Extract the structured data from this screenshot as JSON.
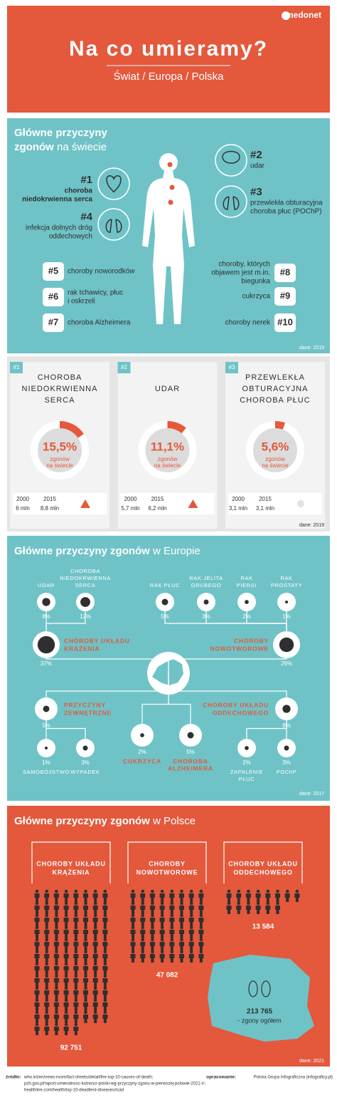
{
  "header": {
    "brand": "medonet",
    "title": "Na co umieramy?",
    "subtitle": "Świat / Europa / Polska"
  },
  "world": {
    "title": {
      "line1": "Główne przyczyny",
      "line2_bold": "zgonów",
      "line2": " na świecie"
    },
    "items": [
      {
        "rank": "#1",
        "lines": [
          "choroba",
          "niedokrwienna serca"
        ]
      },
      {
        "rank": "#2",
        "lines": [
          "udar"
        ]
      },
      {
        "rank": "#3",
        "lines": [
          "przewlekła obturacyjna",
          "choroba płuc (POChP)"
        ]
      },
      {
        "rank": "#4",
        "lines": [
          "infekcja dolnych dróg",
          "oddechowych"
        ]
      },
      {
        "rank": "#5",
        "lines": [
          "choroby noworodków"
        ]
      },
      {
        "rank": "#6",
        "lines": [
          "rak tchawicy, płuc",
          "i oskrzeli"
        ]
      },
      {
        "rank": "#7",
        "lines": [
          "choroba Alzheimera"
        ]
      },
      {
        "rank": "#8",
        "lines": [
          "choroby, których",
          "objawem jest m.in.",
          "biegunka"
        ]
      },
      {
        "rank": "#9",
        "lines": [
          "cukrzyca"
        ]
      },
      {
        "rank": "#10",
        "lines": [
          "choroby nerek"
        ]
      }
    ],
    "source": "dane: 2019"
  },
  "top3": {
    "cards": [
      {
        "rank": "#1",
        "name": [
          "CHOROBA",
          "NIEDOKRWIENNA",
          "SERCA"
        ],
        "share": 15.5,
        "share_label": "15,5%",
        "caption": [
          "zgonów",
          "na świecie"
        ],
        "years": [
          "2000",
          "2015"
        ],
        "counts": [
          "6 mln",
          "8,8 mln"
        ],
        "trend": "up"
      },
      {
        "rank": "#2",
        "name": [
          "UDAR"
        ],
        "share": 11.1,
        "share_label": "11,1%",
        "caption": [
          "zgonów",
          "na świecie"
        ],
        "years": [
          "2000",
          "2015"
        ],
        "counts": [
          "5,7 mln",
          "6,2 mln"
        ],
        "trend": "up"
      },
      {
        "rank": "#3",
        "name": [
          "PRZEWLEKŁA",
          "OBTURACYJNA",
          "CHOROBA PŁUC"
        ],
        "share": 5.6,
        "share_label": "5,6%",
        "caption": [
          "zgonów",
          "na świecie"
        ],
        "years": [
          "2000",
          "2015"
        ],
        "counts": [
          "3,1 mln",
          "3,1 mln"
        ],
        "trend": "flat"
      }
    ],
    "source": "dane: 2019"
  },
  "europe": {
    "title": {
      "bold": "Główne przyczyny zgonów",
      "rest": " w Europie"
    },
    "groups": [
      {
        "name": [
          "CHOROBY UKŁADU",
          "KRĄŻENIA"
        ],
        "value": 37,
        "label": "37%",
        "children": [
          {
            "name": [
              "UDAR"
            ],
            "value": 8,
            "label": "8%"
          },
          {
            "name": [
              "CHOROBA",
              "NIEDOKRWIENNA",
              "SERCA"
            ],
            "value": 12,
            "label": "12%"
          }
        ]
      },
      {
        "name": [
          "CHOROBY",
          "NOWOTWOROWE"
        ],
        "value": 26,
        "label": "26%",
        "children": [
          {
            "name": [
              "RAK PŁUC"
            ],
            "value": 5,
            "label": "5%"
          },
          {
            "name": [
              "RAK JELITA",
              "GRUBEGO"
            ],
            "value": 3,
            "label": "3%"
          },
          {
            "name": [
              "RAK",
              "PIERSI"
            ],
            "value": 2,
            "label": "2%"
          },
          {
            "name": [
              "RAK",
              "PROSTATY"
            ],
            "value": 1,
            "label": "1%"
          }
        ]
      },
      {
        "name": [
          "PRZYCZYNY",
          "ZEWNĘTRZNE"
        ],
        "value": 5,
        "label": "5%",
        "children": [
          {
            "name": [
              "SAMOBÓJSTWO"
            ],
            "value": 1,
            "label": "1%"
          },
          {
            "name": [
              "WYPADEK"
            ],
            "value": 3,
            "label": "3%"
          }
        ]
      },
      {
        "name": [
          "CHOROBY UKŁADU",
          "ODDECHOWEGO"
        ],
        "value": 8,
        "label": "8%",
        "children": [
          {
            "name": [
              "ZAPALENIE",
              "PŁUC"
            ],
            "value": 2,
            "label": "2%"
          },
          {
            "name": [
              "POChP"
            ],
            "value": 3,
            "label": "3%"
          }
        ]
      },
      {
        "name": [
          "CUKRZYCA"
        ],
        "value": 2,
        "label": "2%",
        "children": []
      },
      {
        "name": [
          "CHOROBA",
          "ALZHEIMERA"
        ],
        "value": 5,
        "label": "5%",
        "children": []
      }
    ],
    "source": "dane: 2017"
  },
  "poland": {
    "title": {
      "bold": "Główne przyczyny zgonów",
      "rest": " w Polsce"
    },
    "groups": [
      {
        "name": [
          "CHOROBY UKŁADU",
          "KRĄŻENIA"
        ],
        "value": 92751,
        "label": "92 751"
      },
      {
        "name": [
          "CHOROBY",
          "NOWOTWOROWE"
        ],
        "value": 47082,
        "label": "47 082"
      },
      {
        "name": [
          "CHOROBY UKŁADU",
          "ODDECHOWEGO"
        ],
        "value": 13584,
        "label": "13 584"
      }
    ],
    "total": {
      "value": 213765,
      "label": "213 765",
      "caption": "- zgony ogółem"
    },
    "source": "dane: 2021"
  },
  "footer": {
    "sources_label": "źródło:",
    "sources": [
      "who.int/en/news-room/fact-sheets/detail/the-top-10-causes-of-death;",
      "pzh.gov.pl/raport-umieralnosc-ludnosci-polski-wg-przyczyny-zgonu-w-pierwszej-polowie-2021-r/;",
      "healthline.com/health/top-10-deadliest-diseases#cad"
    ],
    "credit_label": "opracowanie:",
    "credit": "Polska Grupa Infograficzna (infograficy.pl)"
  }
}
